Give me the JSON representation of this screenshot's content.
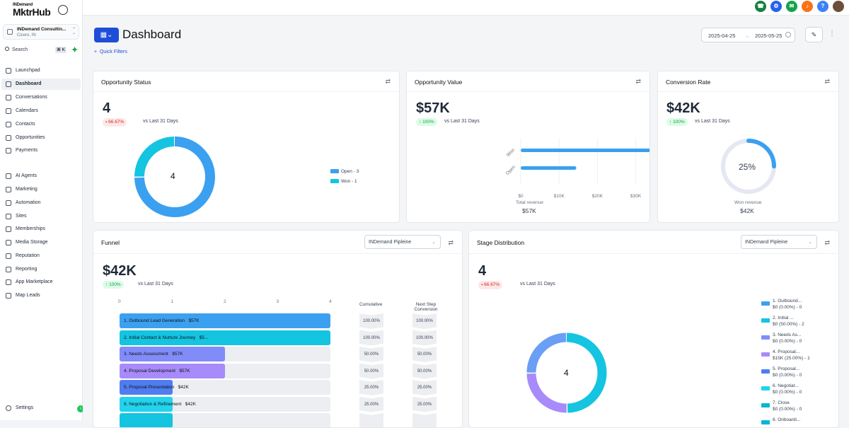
{
  "brand": {
    "top": "INDemand",
    "name": "MktrHub"
  },
  "account": {
    "name": "INDemand Consultin...",
    "location": "Cicero, IN"
  },
  "search": {
    "label": "Search",
    "shortcut": "⌘ K"
  },
  "nav": [
    {
      "label": "Launchpad",
      "icon": "rocket-icon"
    },
    {
      "label": "Dashboard",
      "icon": "grid-icon",
      "active": true
    },
    {
      "label": "Conversations",
      "icon": "chat-icon"
    },
    {
      "label": "Calendars",
      "icon": "calendar-icon"
    },
    {
      "label": "Contacts",
      "icon": "contacts-icon"
    },
    {
      "label": "Opportunities",
      "icon": "opportunities-icon"
    },
    {
      "label": "Payments",
      "icon": "payments-icon"
    },
    {
      "label": "AI Agents",
      "icon": "sparkle-icon"
    },
    {
      "label": "Marketing",
      "icon": "send-icon"
    },
    {
      "label": "Automation",
      "icon": "automation-icon"
    },
    {
      "label": "Sites",
      "icon": "sites-icon"
    },
    {
      "label": "Memberships",
      "icon": "memberships-icon"
    },
    {
      "label": "Media Storage",
      "icon": "media-icon"
    },
    {
      "label": "Reputation",
      "icon": "star-icon"
    },
    {
      "label": "Reporting",
      "icon": "chart-icon"
    },
    {
      "label": "App Marketplace",
      "icon": "marketplace-icon"
    },
    {
      "label": "Map Leads",
      "icon": "map-pin-icon"
    }
  ],
  "settings": {
    "label": "Settings"
  },
  "topbar": {
    "icons": [
      {
        "name": "phone-icon",
        "color": "#15803d"
      },
      {
        "name": "automation-icon",
        "color": "#2563eb"
      },
      {
        "name": "megaphone-icon",
        "color": "#16a34a"
      },
      {
        "name": "bell-icon",
        "color": "#f97316"
      },
      {
        "name": "help-icon",
        "color": "#3b82f6"
      }
    ]
  },
  "page": {
    "title": "Dashboard",
    "quick_filters": "Quick Filters",
    "date_from": "2025-04-25",
    "date_to": "2025-05-25"
  },
  "opportunity_status": {
    "title": "Opportunity Status",
    "value": "4",
    "change": "66.67%",
    "vs": "vs Last 31 Days",
    "center": "4",
    "legend": [
      {
        "label": "Open - 3",
        "color": "#3ba0f0"
      },
      {
        "label": "Won - 1",
        "color": "#14c4e0"
      }
    ]
  },
  "opportunity_value": {
    "title": "Opportunity Value",
    "value": "$57K",
    "change": "100%",
    "vs": "vs Last 31 Days",
    "total_label": "Total revenue",
    "total": "$57K"
  },
  "conversion_rate": {
    "title": "Conversion Rate",
    "value": "$42K",
    "change": "100%",
    "vs": "vs Last 31 Days",
    "percent": "25%",
    "won_label": "Won revenue",
    "won": "$42K"
  },
  "funnel": {
    "title": "Funnel",
    "pipeline": "INDemand Pipleine",
    "value": "$42K",
    "change": "100%",
    "vs": "vs Last 31 Days",
    "cumulative_header": "Cumulative",
    "next_header": "Next Step Conversion",
    "axis": [
      "0",
      "1",
      "2",
      "3",
      "4"
    ],
    "rows": [
      {
        "label": "1. Outbound Lead Generation",
        "amount": "$57K",
        "count": 4,
        "color": "#3ba0f0",
        "cum": "100.00%",
        "next": "100.00%"
      },
      {
        "label": "2. Initial Contact & Nurture Journey",
        "amount": "$5...",
        "count": 4,
        "color": "#14c4e0",
        "cum": "100.00%",
        "next": "100.00%"
      },
      {
        "label": "3. Needs Assessment",
        "amount": "$57K",
        "count": 2,
        "color": "#818cf8",
        "cum": "50.00%",
        "next": "50.00%"
      },
      {
        "label": "4. Proposal Development",
        "amount": "$57K",
        "count": 2,
        "color": "#a78bfa",
        "cum": "50.00%",
        "next": "50.00%"
      },
      {
        "label": "5. Proposal Presentation",
        "amount": "$42K",
        "count": 1,
        "color": "#4f7df0",
        "cum": "25.00%",
        "next": "25.00%"
      },
      {
        "label": "6. Negotiation & Refinement",
        "amount": "$42K",
        "count": 1,
        "color": "#22d3ee",
        "cum": "25.00%",
        "next": "25.00%"
      },
      {
        "label": "",
        "amount": "",
        "count": 1,
        "color": "#14c4e0",
        "cum": "",
        "next": ""
      }
    ]
  },
  "chart_data": [
    {
      "type": "pie",
      "title": "Opportunity Status",
      "categories": [
        "Open",
        "Won"
      ],
      "values": [
        3,
        1
      ]
    },
    {
      "type": "bar",
      "title": "Opportunity Value",
      "orientation": "horizontal",
      "categories": [
        "Won",
        "Open"
      ],
      "values": [
        42,
        14.5
      ],
      "xlim": [
        0,
        50
      ],
      "xticks": [
        "$0",
        "$10K",
        "$20K",
        "$30K",
        "$40K",
        "$50K"
      ],
      "xlabel": "Total revenue"
    },
    {
      "type": "pie",
      "title": "Conversion Rate",
      "values": [
        25,
        75
      ]
    },
    {
      "type": "bar",
      "title": "Stage Distribution",
      "categories": [
        "1. Outbound...",
        "2. Initial ...",
        "3. Needs As...",
        "4. Proposal...",
        "5. Proposal...",
        "6. Negotiat...",
        "7. Close",
        "8. Onboardi..."
      ],
      "values": [
        0,
        2,
        0,
        1,
        0,
        0,
        0,
        0
      ]
    }
  ],
  "stage_distribution": {
    "title": "Stage Distribution",
    "pipeline": "INDemand Pipleine",
    "value": "4",
    "change": "66.67%",
    "vs": "vs Last 31 Days",
    "center": "4",
    "legend": [
      {
        "name": "1. Outbound...",
        "detail": "$0 (0.00%) - 0",
        "color": "#3ba0f0"
      },
      {
        "name": "2. Initial ...",
        "detail": "$0 (50.00%) - 2",
        "color": "#14c4e0"
      },
      {
        "name": "3. Needs As...",
        "detail": "$0 (0.00%) - 0",
        "color": "#818cf8"
      },
      {
        "name": "4. Proposal...",
        "detail": "$15K (25.00%) - 1",
        "color": "#a78bfa"
      },
      {
        "name": "5. Proposal...",
        "detail": "$0 (0.00%) - 0",
        "color": "#4f7df0"
      },
      {
        "name": "6. Negotiat...",
        "detail": "$0 (0.00%) - 0",
        "color": "#22d3ee"
      },
      {
        "name": "7. Close",
        "detail": "$0 (0.00%) - 0",
        "color": "#06b6d4"
      },
      {
        "name": "8. Onboardi...",
        "detail": "",
        "color": "#06b6d4"
      }
    ]
  }
}
